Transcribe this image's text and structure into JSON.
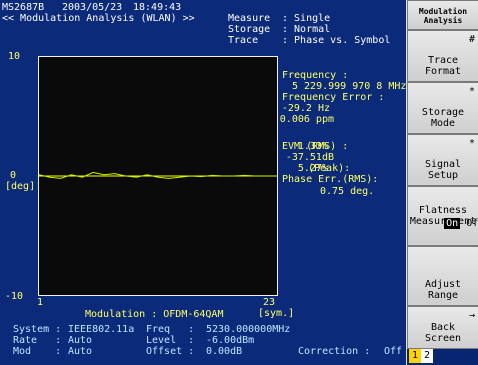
{
  "header": {
    "model": "MS2687B",
    "date": "2003/05/23",
    "time": "18:49:43",
    "title": "<< Modulation Analysis (WLAN) >>"
  },
  "settings": [
    {
      "label": "Measure",
      "value": ": Single"
    },
    {
      "label": "Storage",
      "value": ": Normal"
    },
    {
      "label": "Trace",
      "value": ": Phase vs. Symbol"
    }
  ],
  "results": {
    "freq_label": "Frequency :",
    "freq_value": "5 229.999 970 8 MHz",
    "freq_err_label": "Frequency Error :",
    "freq_err_hz": "-29.2 Hz",
    "freq_err_ppm": "-0.006 ppm",
    "evm_rms_label": "EVM (RMS) :",
    "evm_rms_pct": "1.33%",
    "evm_rms_db": "-37.51dB",
    "evm_peak_label": "(Peak):",
    "evm_peak_pct": "5.27%",
    "phase_err_label": "Phase Err.(RMS):",
    "phase_err_value": "0.75 deg."
  },
  "plot": {
    "y_top": "10",
    "y_mid": "0",
    "y_unit": "[deg]",
    "y_bottom": "-10",
    "x_start": "1",
    "x_end": "23",
    "x_unit": "[sym.]",
    "modulation": "Modulation : OFDM-64QAM",
    "trace_color": "#c8f000",
    "ref_color": "#ffff00"
  },
  "chart_data": {
    "type": "line",
    "xlabel": "[sym.]",
    "ylabel": "[deg]",
    "xlim": [
      1,
      23
    ],
    "ylim": [
      -10,
      10
    ],
    "x": [
      1,
      2,
      3,
      4,
      5,
      6,
      7,
      8,
      9,
      10,
      11,
      12,
      13,
      14,
      15,
      16,
      17,
      18,
      19,
      20,
      21,
      22,
      23
    ],
    "values": [
      0.1,
      -0.1,
      -0.2,
      0.1,
      -0.1,
      0.3,
      0.1,
      0.2,
      0.0,
      -0.1,
      0.1,
      -0.1,
      -0.2,
      -0.1,
      0.0,
      -0.05,
      0.05,
      0.0,
      0.0,
      0.05,
      0.0,
      0.0,
      0.0
    ]
  },
  "footer": {
    "row1": [
      {
        "label": "System :",
        "value": "IEEE802.11a"
      },
      {
        "label": "Freq   :",
        "value": "5230.000000MHz"
      }
    ],
    "row2": [
      {
        "label": "Rate   :",
        "value": "Auto"
      },
      {
        "label": "Level  :",
        "value": "-6.00dBm"
      }
    ],
    "row3": [
      {
        "label": "Mod    :",
        "value": "Auto"
      },
      {
        "label": "Offset :",
        "value": "0.00dB"
      },
      {
        "label": "Correction :",
        "value": "Off"
      }
    ]
  },
  "softkeys": {
    "header": "Modulation\nAnalysis",
    "k1": {
      "mark": "#",
      "label": "Trace\nFormat"
    },
    "k2": {
      "mark": "*",
      "label": "Storage\nMode"
    },
    "k3": {
      "mark": "*",
      "label": "Signal\nSetup"
    },
    "k4": {
      "label": "Flatness\nMeasurement",
      "on": "On",
      "off": "Off"
    },
    "k5": {
      "label": "Adjust\nRange"
    },
    "k6": {
      "mark": "→",
      "label": "Back\nScreen"
    },
    "page_current": "1",
    "page_other": "2"
  }
}
